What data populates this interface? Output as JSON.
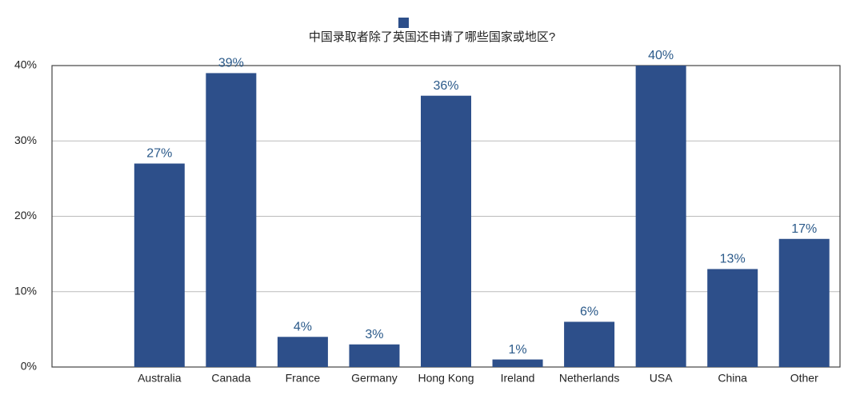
{
  "chart_data": {
    "type": "bar",
    "categories": [
      null,
      "Australia",
      "Canada",
      "France",
      "Germany",
      "Hong Kong",
      "Ireland",
      "Netherlands",
      "USA",
      "China",
      "Other"
    ],
    "series": [
      {
        "name": "中国录取者除了英国还申请了哪些国家或地区?",
        "color": "#2d4f8a",
        "values": [
          null,
          27,
          39,
          4,
          3,
          36,
          1,
          6,
          40,
          13,
          17
        ],
        "value_labels": [
          null,
          "27%",
          "39%",
          "4%",
          "3%",
          "36%",
          "1%",
          "6%",
          "40%",
          "13%",
          "17%"
        ]
      }
    ],
    "ylim": [
      0,
      40
    ],
    "yticks": [
      {
        "value": 0,
        "label": "0%"
      },
      {
        "value": 10,
        "label": "10%"
      },
      {
        "value": 20,
        "label": "20%"
      },
      {
        "value": 30,
        "label": "30%"
      },
      {
        "value": 40,
        "label": "40%"
      }
    ],
    "grid": true
  }
}
